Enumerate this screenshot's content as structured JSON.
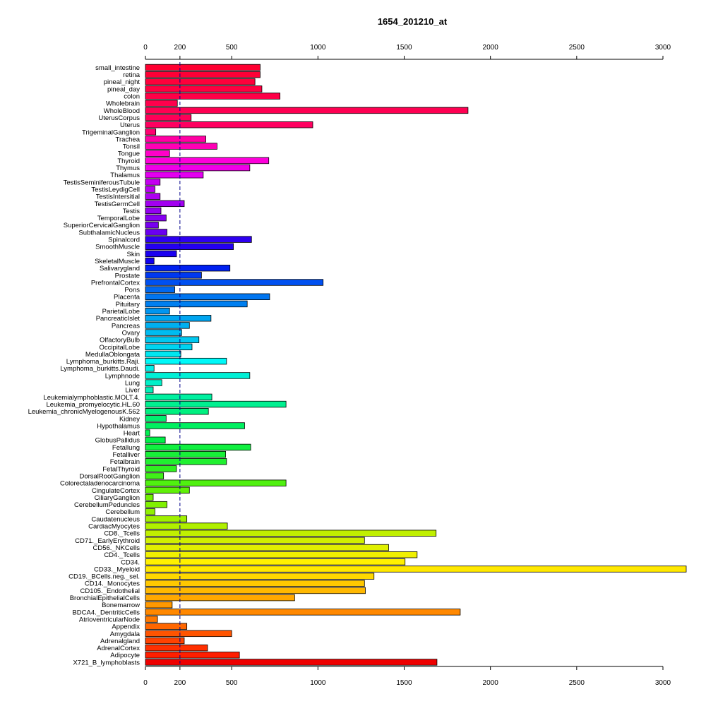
{
  "chart_data": {
    "type": "bar",
    "orientation": "horizontal",
    "title": "1654_201210_at",
    "xlabel": "",
    "ylabel": "",
    "xlim": [
      0,
      3000
    ],
    "x_ticks": [
      0,
      200,
      500,
      1000,
      1500,
      2000,
      2500,
      3000
    ],
    "x_tick_labels": [
      "0",
      "200",
      "500",
      "1000",
      "1500",
      "2000",
      "2500",
      "3000"
    ],
    "reference_line": 200,
    "axes": "top-and-bottom",
    "grid": false,
    "legend": "none",
    "categories": [
      "small_intestine",
      "retina",
      "pineal_night",
      "pineal_day",
      "colon",
      "Wholebrain",
      "WholeBlood",
      "UterusCorpus",
      "Uterus",
      "TrigeminalGanglion",
      "Trachea",
      "Tonsil",
      "Tongue",
      "Thyroid",
      "Thymus",
      "Thalamus",
      "TestisSeminiferousTubule",
      "TestisLeydigCell",
      "TestisIntersitial",
      "TestisGermCell",
      "Testis",
      "TemporalLobe",
      "SuperiorCervicalGanglion",
      "SubthalamicNucleus",
      "Spinalcord",
      "SmoothMuscle",
      "Skin",
      "SkeletalMuscle",
      "Salivarygland",
      "Prostate",
      "PrefrontalCortex",
      "Pons",
      "Placenta",
      "Pituitary",
      "ParietalLobe",
      "PancreaticIslet",
      "Pancreas",
      "Ovary",
      "OlfactoryBulb",
      "OccipitalLobe",
      "MedullaOblongata",
      "Lymphoma_burkitts.Raji.",
      "Lymphoma_burkitts.Daudi.",
      "Lymphnode",
      "Lung",
      "Liver",
      "Leukemialymphoblastic.MOLT.4.",
      "Leukemia_promyelocytic.HL.60",
      "Leukemia_chronicMyelogenousK.562",
      "Kidney",
      "Hypothalamus",
      "Heart",
      "GlobusPallidus",
      "Fetallung",
      "Fetalliver",
      "Fetalbrain",
      "FetalThyroid",
      "DorsalRootGanglion",
      "Colorectaladenocarcinoma",
      "CingulateCortex",
      "CiliaryGanglion",
      "CerebellumPeduncles",
      "Cerebellum",
      "Caudatenucleus",
      "CardiacMyocytes",
      "CD8._Tcells",
      "CD71._EarlyErythroid",
      "CD56._NKCells",
      "CD4._Tcells",
      "CD34.",
      "CD33._Myeloid",
      "CD19._BCells.neg._sel.",
      "CD14._Monocytes",
      "CD105._Endothelial",
      "BronchialEpithelialCells",
      "Bonemarrow",
      "BDCA4._DentriticCells",
      "AtrioventricularNode",
      "Appendix",
      "Amygdala",
      "Adrenalgland",
      "AdrenalCortex",
      "Adipocyte",
      "X721_B_lymphoblasts"
    ],
    "values": [
      665,
      665,
      635,
      675,
      780,
      185,
      1870,
      265,
      970,
      60,
      350,
      415,
      140,
      715,
      605,
      335,
      85,
      55,
      85,
      225,
      90,
      120,
      75,
      125,
      615,
      510,
      180,
      50,
      490,
      325,
      1030,
      170,
      720,
      590,
      140,
      380,
      255,
      210,
      310,
      270,
      205,
      470,
      50,
      605,
      95,
      45,
      385,
      815,
      365,
      120,
      575,
      25,
      115,
      610,
      465,
      470,
      180,
      105,
      815,
      255,
      45,
      125,
      55,
      240,
      475,
      1685,
      1270,
      1410,
      1575,
      1505,
      3135,
      1325,
      1270,
      1275,
      865,
      155,
      1825,
      70,
      240,
      500,
      225,
      360,
      545,
      1690
    ],
    "bar_colors": [
      "#ff0031",
      "#ff0036",
      "#ff003b",
      "#ff0041",
      "#ff0047",
      "#ff004c",
      "#ff0052",
      "#ff0058",
      "#ff0060",
      "#ff0070",
      "#ff00a3",
      "#ff00b5",
      "#ff00c8",
      "#fd00da",
      "#f000e8",
      "#e300f0",
      "#c400f0",
      "#b800f0",
      "#ad00f0",
      "#a200f0",
      "#9300f0",
      "#8600f0",
      "#7800f0",
      "#6a00f0",
      "#2e00f0",
      "#2400f0",
      "#1a00f0",
      "#1000f0",
      "#0020f0",
      "#0038f0",
      "#0050f0",
      "#0068f0",
      "#0075f0",
      "#007ff0",
      "#0095f0",
      "#00a5f0",
      "#00b0f0",
      "#00bbf0",
      "#00c8f0",
      "#00d4f0",
      "#00e6f0",
      "#00f8f8",
      "#00f0e8",
      "#00f0d6",
      "#00f0c8",
      "#00f0b8",
      "#00f0a0",
      "#00f090",
      "#00f080",
      "#00f070",
      "#00f060",
      "#00f050",
      "#00f048",
      "#10f040",
      "#18f038",
      "#20f030",
      "#30f020",
      "#40f018",
      "#50f010",
      "#60f008",
      "#70f000",
      "#80f000",
      "#90f000",
      "#a0f000",
      "#b0f000",
      "#c0f000",
      "#d0f000",
      "#e0f000",
      "#f0f000",
      "#fff000",
      "#ffe800",
      "#ffd800",
      "#ffc800",
      "#ffb800",
      "#ffa800",
      "#ff9800",
      "#ff8800",
      "#ff7800",
      "#ff6600",
      "#ff5400",
      "#ff4200",
      "#ff3000",
      "#ff1e00",
      "#ee0000"
    ]
  }
}
